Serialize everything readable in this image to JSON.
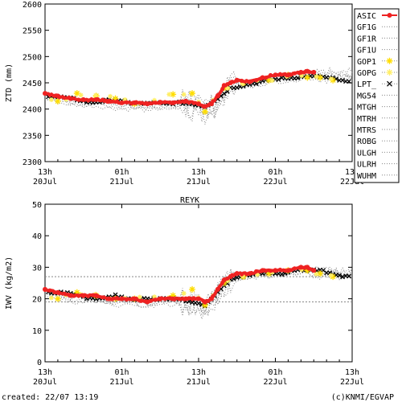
{
  "station_title": "REYK",
  "footer": {
    "created": "created: 22/07 13:19",
    "credit": "(c)KNMI/EGVAP"
  },
  "colors": {
    "asic": "#ee2222",
    "gop1": "#ffdd00",
    "gopg": "#ffee66",
    "lpt": "#000000",
    "other": "#888888",
    "axis": "#000000"
  },
  "x_ticks": [
    {
      "t": 0,
      "line1": "13h",
      "line2": "20Jul"
    },
    {
      "t": 12,
      "line1": "01h",
      "line2": "21Jul"
    },
    {
      "t": 24,
      "line1": "13h",
      "line2": "21Jul"
    },
    {
      "t": 36,
      "line1": "01h",
      "line2": "22Jul"
    },
    {
      "t": 48,
      "line1": "13h",
      "line2": "22Jul"
    }
  ],
  "legend": {
    "entries": [
      {
        "name": "ASIC",
        "style": "asic"
      },
      {
        "name": "GF1G",
        "style": "dot"
      },
      {
        "name": "GF1R",
        "style": "dot"
      },
      {
        "name": "GF1U",
        "style": "dot"
      },
      {
        "name": "GOP1",
        "style": "gop1"
      },
      {
        "name": "GOPG",
        "style": "gopg"
      },
      {
        "name": "LPT_",
        "style": "lpt"
      },
      {
        "name": "MG54",
        "style": "dot"
      },
      {
        "name": "MTGH",
        "style": "dot"
      },
      {
        "name": "MTRH",
        "style": "dot"
      },
      {
        "name": "MTRS",
        "style": "dot"
      },
      {
        "name": "ROBG",
        "style": "dot"
      },
      {
        "name": "ULGH",
        "style": "dot"
      },
      {
        "name": "ULRH",
        "style": "dot"
      },
      {
        "name": "WUHM",
        "style": "dot"
      }
    ]
  },
  "chart_data": [
    {
      "type": "line",
      "ylabel": "ZTD (mm)",
      "ylim": [
        2300,
        2600
      ],
      "yticks": [
        2300,
        2350,
        2400,
        2450,
        2500,
        2550,
        2600
      ],
      "xlim": [
        0,
        48
      ],
      "x_unit": "hours since 20Jul 13h",
      "series": [
        {
          "name": "ASIC",
          "x": [
            0,
            2,
            4,
            6,
            8,
            10,
            12,
            14,
            16,
            18,
            20,
            22,
            24,
            25,
            26,
            27,
            28,
            29,
            30,
            32,
            34,
            36,
            38,
            40,
            41,
            42
          ],
          "y": [
            2430,
            2425,
            2420,
            2418,
            2418,
            2415,
            2412,
            2412,
            2410,
            2413,
            2412,
            2415,
            2410,
            2405,
            2410,
            2425,
            2445,
            2450,
            2455,
            2452,
            2460,
            2465,
            2465,
            2470,
            2472,
            2470
          ]
        },
        {
          "name": "LPT_",
          "x": [
            1,
            3,
            5,
            7,
            9,
            11,
            13,
            15,
            17,
            19,
            21,
            23,
            25,
            27,
            29,
            31,
            33,
            35,
            37,
            39,
            41,
            43,
            45,
            47
          ],
          "y": [
            2425,
            2422,
            2418,
            2412,
            2415,
            2418,
            2412,
            2410,
            2412,
            2410,
            2412,
            2410,
            2405,
            2420,
            2440,
            2445,
            2450,
            2455,
            2458,
            2460,
            2462,
            2462,
            2458,
            2452
          ]
        },
        {
          "name": "GOP1",
          "x": [
            2,
            5,
            8,
            11,
            14,
            20,
            23,
            25,
            28,
            31,
            35,
            38,
            41,
            43,
            45
          ],
          "y": [
            2415,
            2430,
            2425,
            2420,
            2410,
            2428,
            2430,
            2395,
            2440,
            2450,
            2455,
            2465,
            2460,
            2460,
            2455
          ]
        }
      ]
    },
    {
      "type": "line",
      "ylabel": "IWV (kg/m2)",
      "ylim": [
        0,
        50
      ],
      "yticks": [
        0,
        10,
        20,
        30,
        40,
        50
      ],
      "xlim": [
        0,
        48
      ],
      "x_unit": "hours since 20Jul 13h",
      "reference_lines": [
        27,
        19
      ],
      "series": [
        {
          "name": "ASIC",
          "x": [
            0,
            2,
            4,
            6,
            8,
            10,
            12,
            14,
            16,
            18,
            20,
            22,
            24,
            25,
            26,
            27,
            28,
            29,
            30,
            32,
            34,
            36,
            38,
            40,
            41,
            42
          ],
          "y": [
            23,
            22,
            21,
            21,
            21,
            20,
            20,
            20,
            19,
            20,
            20,
            20,
            20,
            19,
            20,
            23,
            26,
            27,
            28,
            28,
            29,
            29,
            29,
            30,
            30,
            29
          ]
        },
        {
          "name": "LPT_",
          "x": [
            1,
            3,
            5,
            7,
            9,
            11,
            13,
            15,
            17,
            19,
            21,
            23,
            25,
            27,
            29,
            31,
            33,
            35,
            37,
            39,
            41,
            43,
            45,
            47
          ],
          "y": [
            22,
            22,
            21,
            20,
            20,
            21,
            20,
            20,
            20,
            20,
            20,
            19,
            18,
            22,
            26,
            27,
            28,
            28,
            28,
            29,
            29,
            29,
            28,
            27
          ]
        },
        {
          "name": "GOP1",
          "x": [
            2,
            5,
            8,
            11,
            14,
            20,
            23,
            25,
            28,
            31,
            35,
            38,
            41,
            43,
            45
          ],
          "y": [
            20,
            22,
            21,
            20,
            20,
            21,
            23,
            18,
            25,
            27,
            28,
            29,
            29,
            28,
            27
          ]
        }
      ]
    }
  ]
}
